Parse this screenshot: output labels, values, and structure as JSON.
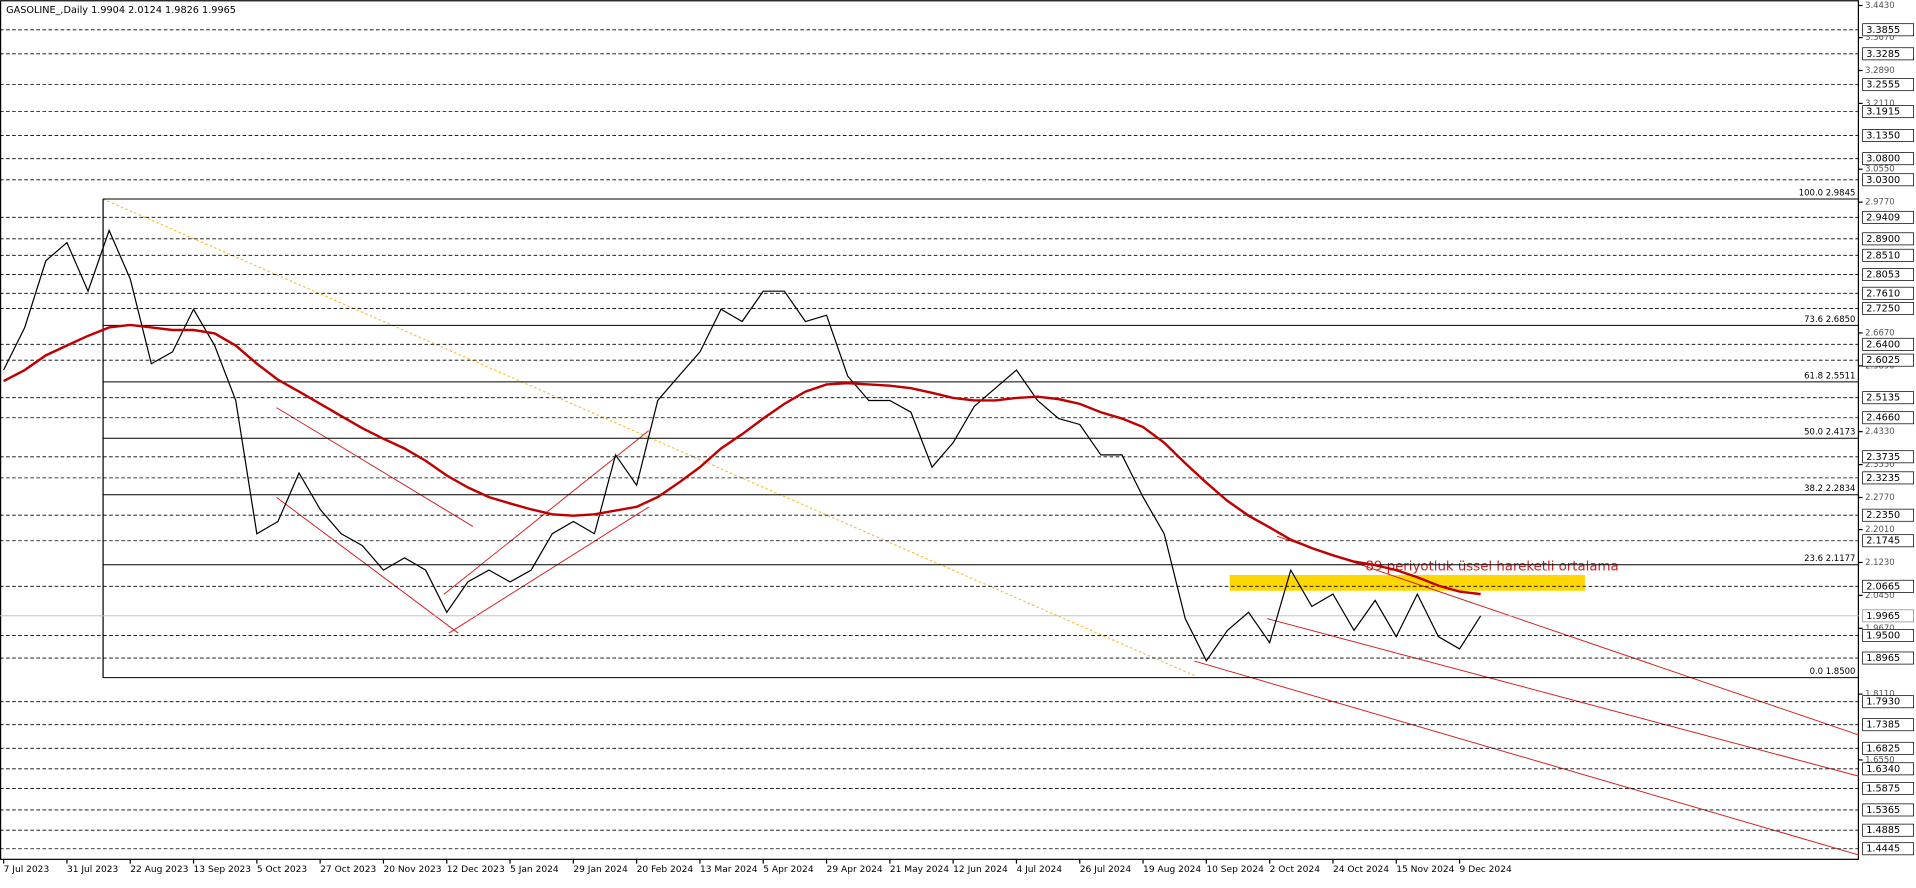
{
  "chart_data": {
    "type": "line",
    "title": "GASOLINE_,Daily  1.9904 2.0124 1.9826 1.9965",
    "annotation": "89 periyotluk üssel hareketli ortalama",
    "categories": [
      "7 Jul 2023",
      null,
      null,
      "31 Jul 2023",
      null,
      null,
      "22 Aug 2023",
      null,
      null,
      "13 Sep 2023",
      null,
      null,
      "5 Oct 2023",
      null,
      null,
      "27 Oct 2023",
      null,
      null,
      "20 Nov 2023",
      null,
      null,
      "12 Dec 2023",
      null,
      null,
      "5 Jan 2024",
      null,
      null,
      "29 Jan 2024",
      null,
      null,
      "20 Feb 2024",
      null,
      null,
      "13 Mar 2024",
      null,
      null,
      "5 Apr 2024",
      null,
      null,
      "29 Apr 2024",
      null,
      null,
      "21 May 2024",
      null,
      null,
      "12 Jun 2024",
      null,
      null,
      "4 Jul 2024",
      null,
      null,
      "26 Jul 2024",
      null,
      null,
      "19 Aug 2024",
      null,
      null,
      "10 Sep 2024",
      null,
      null,
      "2 Oct 2024",
      null,
      null,
      "24 Oct 2024",
      null,
      null,
      "15 Nov 2024",
      null,
      null,
      "9 Dec 2024",
      null
    ],
    "series": [
      {
        "color": "#000000",
        "values": [
          2.579,
          2.68,
          2.838,
          2.881,
          2.766,
          2.91,
          2.795,
          2.594,
          2.622,
          2.723,
          2.637,
          2.507,
          2.191,
          2.22,
          2.335,
          2.249,
          2.191,
          2.163,
          2.105,
          2.134,
          2.105,
          2.005,
          2.077,
          2.105,
          2.077,
          2.105,
          2.191,
          2.22,
          2.191,
          2.378,
          2.306,
          2.507,
          2.565,
          2.622,
          2.723,
          2.694,
          2.766,
          2.766,
          2.694,
          2.709,
          2.565,
          2.507,
          2.507,
          2.479,
          2.349,
          2.407,
          2.493,
          2.536,
          2.579,
          2.507,
          2.464,
          2.45,
          2.378,
          2.378,
          2.278,
          2.191,
          1.99,
          1.89,
          1.962,
          2.005,
          1.933,
          2.105,
          2.019,
          2.048,
          1.962,
          2.033,
          1.947,
          2.048,
          1.947,
          1.918,
          1.9965
        ]
      },
      {
        "color": "#c00000",
        "values": [
          2.553,
          2.579,
          2.614,
          2.637,
          2.66,
          2.68,
          2.686,
          2.68,
          2.674,
          2.674,
          2.666,
          2.637,
          2.594,
          2.556,
          2.528,
          2.499,
          2.47,
          2.441,
          2.416,
          2.393,
          2.364,
          2.329,
          2.301,
          2.278,
          2.263,
          2.249,
          2.237,
          2.234,
          2.237,
          2.246,
          2.255,
          2.278,
          2.312,
          2.349,
          2.393,
          2.427,
          2.464,
          2.499,
          2.528,
          2.545,
          2.548,
          2.545,
          2.542,
          2.536,
          2.525,
          2.513,
          2.507,
          2.507,
          2.513,
          2.516,
          2.51,
          2.499,
          2.479,
          2.464,
          2.444,
          2.407,
          2.358,
          2.312,
          2.269,
          2.234,
          2.206,
          2.177,
          2.157,
          2.14,
          2.125,
          2.117,
          2.105,
          2.088,
          2.068,
          2.054,
          2.048
        ]
      }
    ],
    "ylim": [
      1.418,
      3.443
    ],
    "yticks": [
      {
        "value": 3.443,
        "label": "3.4430"
      },
      {
        "value": 3.367,
        "label": "3.3670"
      },
      {
        "value": 3.289,
        "label": "3.2890"
      },
      {
        "value": 3.211,
        "label": "3.2110"
      },
      {
        "value": 3.055,
        "label": "3.0550"
      },
      {
        "value": 2.977,
        "label": "2.9770"
      },
      {
        "value": 2.667,
        "label": "2.6670"
      },
      {
        "value": 2.589,
        "label": "2.5890"
      },
      {
        "value": 2.433,
        "label": "2.4330"
      },
      {
        "value": 2.355,
        "label": "2.3550"
      },
      {
        "value": 2.277,
        "label": "2.2770"
      },
      {
        "value": 2.201,
        "label": "2.2010"
      },
      {
        "value": 2.123,
        "label": "2.1230"
      },
      {
        "value": 2.045,
        "label": "2.0450"
      },
      {
        "value": 1.967,
        "label": "1.9670"
      },
      {
        "value": 1.811,
        "label": "1.8110"
      },
      {
        "value": 1.655,
        "label": "1.6550"
      }
    ],
    "levels": [
      {
        "value": 3.3855,
        "label": "3.3855"
      },
      {
        "value": 3.3285,
        "label": "3.3285"
      },
      {
        "value": 3.2555,
        "label": "3.2555"
      },
      {
        "value": 3.1915,
        "label": "3.1915"
      },
      {
        "value": 3.135,
        "label": "3.1350"
      },
      {
        "value": 3.08,
        "label": "3.0800"
      },
      {
        "value": 3.03,
        "label": "3.0300"
      },
      {
        "value": 2.9409,
        "label": "2.9409"
      },
      {
        "value": 2.89,
        "label": "2.8900"
      },
      {
        "value": 2.851,
        "label": "2.8510"
      },
      {
        "value": 2.8053,
        "label": "2.8053"
      },
      {
        "value": 2.761,
        "label": "2.7610"
      },
      {
        "value": 2.725,
        "label": "2.7250"
      },
      {
        "value": 2.64,
        "label": "2.6400"
      },
      {
        "value": 2.6025,
        "label": "2.6025"
      },
      {
        "value": 2.5135,
        "label": "2.5135"
      },
      {
        "value": 2.466,
        "label": "2.4660"
      },
      {
        "value": 2.3735,
        "label": "2.3735"
      },
      {
        "value": 2.3235,
        "label": "2.3235"
      },
      {
        "value": 2.235,
        "label": "2.2350"
      },
      {
        "value": 2.1745,
        "label": "2.1745"
      },
      {
        "value": 2.0665,
        "label": "2.0665"
      },
      {
        "value": 1.95,
        "label": "1.9500"
      },
      {
        "value": 1.8965,
        "label": "1.8965"
      },
      {
        "value": 1.793,
        "label": "1.7930"
      },
      {
        "value": 1.7385,
        "label": "1.7385"
      },
      {
        "value": 1.6825,
        "label": "1.6825"
      },
      {
        "value": 1.634,
        "label": "1.6340"
      },
      {
        "value": 1.5875,
        "label": "1.5875"
      },
      {
        "value": 1.5365,
        "label": "1.5365"
      },
      {
        "value": 1.4885,
        "label": "1.4885"
      },
      {
        "value": 1.4445,
        "label": "1.4445"
      }
    ],
    "last_price": {
      "value": 1.9965,
      "label": "1.9965"
    },
    "fib_levels": [
      {
        "value": 2.9845,
        "label": "100.0 2.9845"
      },
      {
        "value": 2.685,
        "label": "73.6 2.6850"
      },
      {
        "value": 2.5511,
        "label": "61.8 2.5511"
      },
      {
        "value": 2.4173,
        "label": "50.0 2.4173"
      },
      {
        "value": 2.2834,
        "label": "38.2 2.2834"
      },
      {
        "value": 2.1177,
        "label": "23.6 2.1177"
      },
      {
        "value": 1.85,
        "label": "0.0 1.8500"
      }
    ]
  }
}
